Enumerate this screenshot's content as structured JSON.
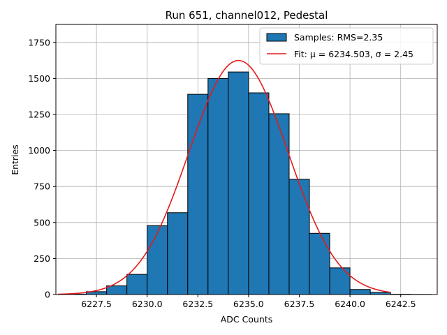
{
  "chart_data": {
    "type": "bar",
    "title": "Run 651, channel012, Pedestal",
    "xlabel": "ADC Counts",
    "ylabel": "Entries",
    "xlim": [
      6225.5,
      6244.3
    ],
    "ylim": [
      0,
      1875
    ],
    "grid": true,
    "legend_position": "top-right",
    "x_ticks": [
      6227.5,
      6230.0,
      6232.5,
      6235.0,
      6237.5,
      6240.0,
      6242.5
    ],
    "x_tick_labels": [
      "6227.5",
      "6230.0",
      "6232.5",
      "6235.0",
      "6237.5",
      "6240.0",
      "6242.5"
    ],
    "y_ticks": [
      0,
      250,
      500,
      750,
      1000,
      1250,
      1500,
      1750
    ],
    "y_tick_labels": [
      "0",
      "250",
      "500",
      "750",
      "1000",
      "1250",
      "1500",
      "1750"
    ],
    "histogram": {
      "name": "Samples: RMS=2.35",
      "color": "#1f77b4",
      "edge_color": "#000000",
      "bins": [
        {
          "start": 6226.0,
          "end": 6227.0,
          "count": 3
        },
        {
          "start": 6227.0,
          "end": 6228.0,
          "count": 20
        },
        {
          "start": 6228.0,
          "end": 6229.0,
          "count": 60
        },
        {
          "start": 6229.0,
          "end": 6230.0,
          "count": 140
        },
        {
          "start": 6230.0,
          "end": 6231.0,
          "count": 478
        },
        {
          "start": 6231.0,
          "end": 6232.0,
          "count": 568
        },
        {
          "start": 6232.0,
          "end": 6233.0,
          "count": 1390
        },
        {
          "start": 6233.0,
          "end": 6234.0,
          "count": 1500
        },
        {
          "start": 6234.0,
          "end": 6235.0,
          "count": 1545
        },
        {
          "start": 6235.0,
          "end": 6236.0,
          "count": 1400
        },
        {
          "start": 6236.0,
          "end": 6237.0,
          "count": 1255
        },
        {
          "start": 6237.0,
          "end": 6238.0,
          "count": 800
        },
        {
          "start": 6238.0,
          "end": 6239.0,
          "count": 425
        },
        {
          "start": 6239.0,
          "end": 6240.0,
          "count": 185
        },
        {
          "start": 6240.0,
          "end": 6241.0,
          "count": 35
        },
        {
          "start": 6241.0,
          "end": 6242.0,
          "count": 15
        },
        {
          "start": 6242.0,
          "end": 6243.0,
          "count": 2
        },
        {
          "start": 6243.0,
          "end": 6244.0,
          "count": 1
        }
      ]
    },
    "fit": {
      "name": "Fit: μ = 6234.503, σ = 2.45",
      "type": "gaussian",
      "color": "#e31a1c",
      "mu": 6234.503,
      "sigma": 2.45,
      "amplitude": 1625,
      "x_range": [
        6225.6,
        6242.0
      ]
    }
  }
}
